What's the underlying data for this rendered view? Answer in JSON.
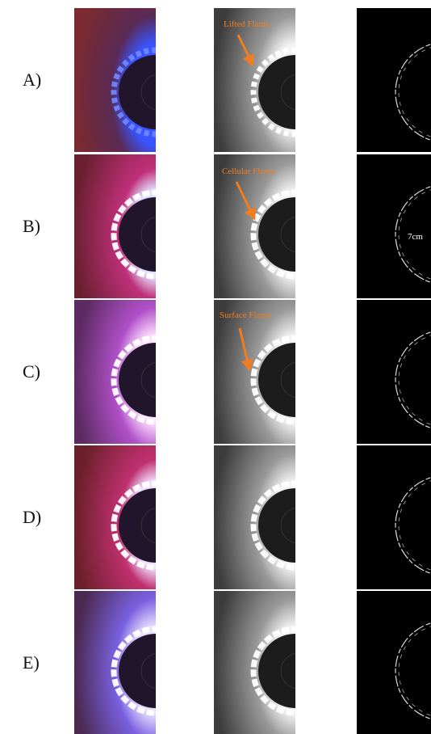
{
  "rows": [
    {
      "label": "A)",
      "annotation": "Lifted Flame"
    },
    {
      "label": "B)",
      "annotation": "Cellular Flame"
    },
    {
      "label": "C)",
      "annotation": "Surface Flame"
    },
    {
      "label": "D)"
    },
    {
      "label": "E)"
    }
  ],
  "scale_label": "7cm"
}
